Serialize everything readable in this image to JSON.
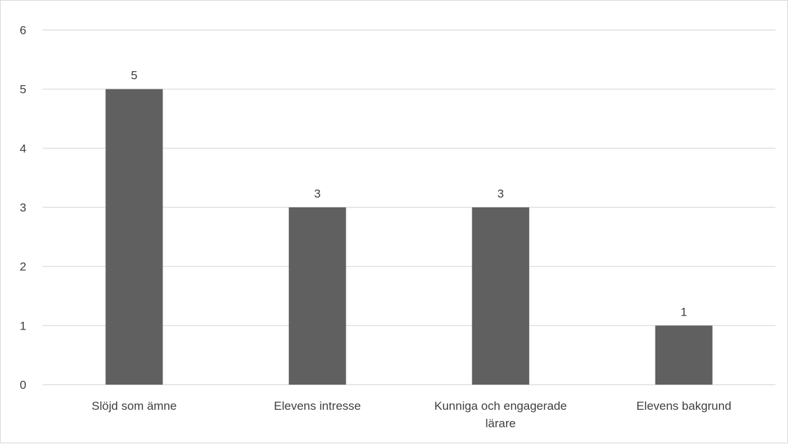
{
  "chart_data": {
    "type": "bar",
    "title": "",
    "xlabel": "",
    "ylabel": "",
    "categories": [
      [
        "Slöjd som ämne"
      ],
      [
        "Elevens intresse"
      ],
      [
        "Kunniga och engagerade",
        "lärare"
      ],
      [
        "Elevens bakgrund"
      ]
    ],
    "values": [
      5,
      3,
      3,
      1
    ],
    "value_labels": [
      "5",
      "3",
      "3",
      "1"
    ],
    "ylim": [
      0,
      6
    ],
    "yticks": [
      "0",
      "1",
      "2",
      "3",
      "4",
      "5",
      "6"
    ],
    "grid": true,
    "legend": "none",
    "bar_color": "#606060",
    "grid_color": "#d9d9d9"
  }
}
